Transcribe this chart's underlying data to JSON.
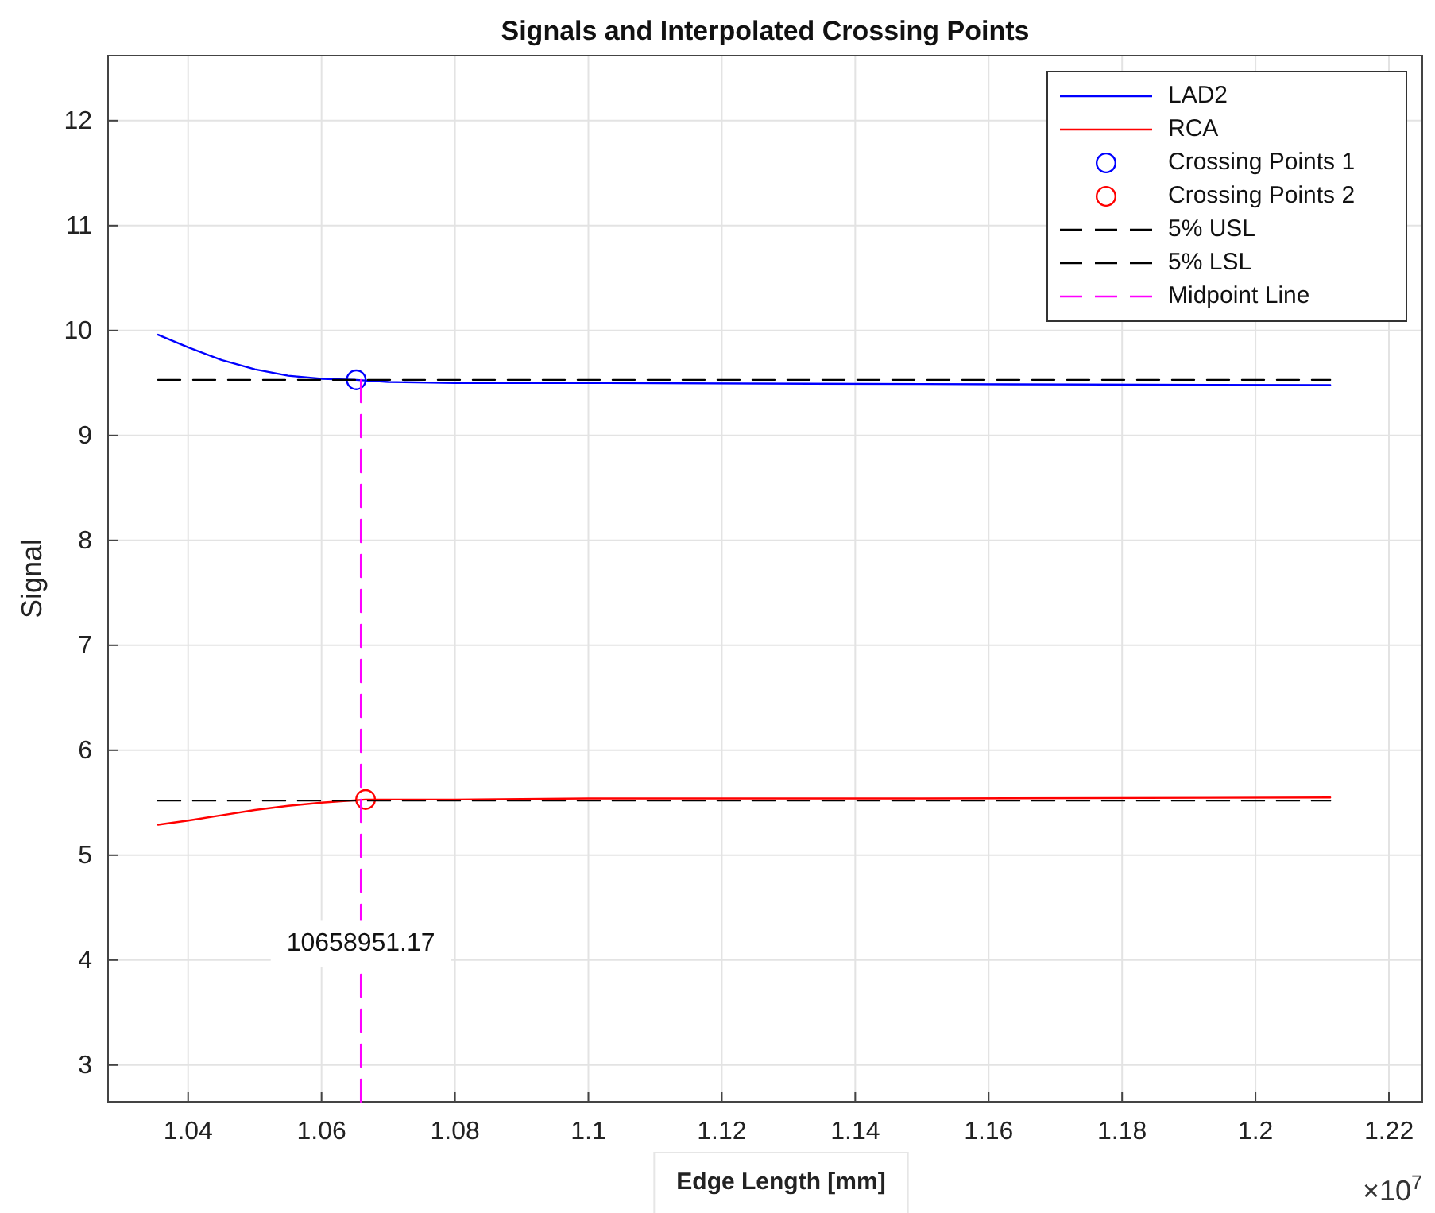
{
  "chart_data": {
    "type": "line",
    "title": "Signals and Interpolated Crossing Points",
    "xlabel": "Edge Length [mm]",
    "ylabel": "Signal",
    "xlim": [
      1.028,
      1.225
    ],
    "xticks": [
      1.04,
      1.06,
      1.08,
      1.1,
      1.12,
      1.14,
      1.16,
      1.18,
      1.2,
      1.22
    ],
    "ylim": [
      2.65,
      12.62
    ],
    "yticks": [
      3,
      4,
      5,
      6,
      7,
      8,
      9,
      10,
      11,
      12
    ],
    "grid": true,
    "legend": "top right",
    "series": [
      {
        "name": "LAD2",
        "color": "#0000ff",
        "line_style": "solid",
        "marker": "none",
        "x": [
          1.0355,
          1.04,
          1.045,
          1.05,
          1.055,
          1.06,
          1.0652,
          1.07,
          1.08,
          1.1,
          1.15,
          1.2112
        ],
        "values": [
          9.96,
          9.84,
          9.72,
          9.63,
          9.57,
          9.54,
          9.53,
          9.51,
          9.5,
          9.5,
          9.49,
          9.48
        ]
      },
      {
        "name": "RCA",
        "color": "#ff0000",
        "line_style": "solid",
        "marker": "none",
        "x": [
          1.0355,
          1.04,
          1.045,
          1.05,
          1.055,
          1.06,
          1.0666,
          1.08,
          1.1,
          1.15,
          1.2112
        ],
        "values": [
          5.29,
          5.33,
          5.38,
          5.43,
          5.47,
          5.5,
          5.53,
          5.53,
          5.54,
          5.54,
          5.55
        ]
      },
      {
        "name": "Crossing Points 1",
        "type": "scatter",
        "color": "#0000ff",
        "marker": "circle",
        "x": [
          1.0652
        ],
        "values": [
          9.53
        ]
      },
      {
        "name": "Crossing Points 2",
        "type": "scatter",
        "color": "#ff0000",
        "marker": "circle",
        "x": [
          1.0666
        ],
        "values": [
          5.53
        ]
      },
      {
        "name": "5% USL",
        "color": "#000000",
        "line_style": "dashed",
        "marker": "none",
        "x": [
          1.0355,
          1.2112
        ],
        "values": [
          9.53,
          9.53
        ]
      },
      {
        "name": "5% LSL",
        "color": "#000000",
        "line_style": "dashed",
        "marker": "none",
        "x": [
          1.0355,
          1.2112
        ],
        "values": [
          5.52,
          5.52
        ]
      },
      {
        "name": "Midpoint Line",
        "color": "#ff00ff",
        "line_style": "dashed",
        "marker": "none",
        "x": [
          1.065895117,
          1.065895117
        ],
        "values": [
          2.65,
          9.53
        ]
      }
    ],
    "annotations": [
      {
        "text": "10658951.17",
        "x": 1.065895117,
        "y": 4.15
      },
      "×10$^{7}$"
    ]
  }
}
